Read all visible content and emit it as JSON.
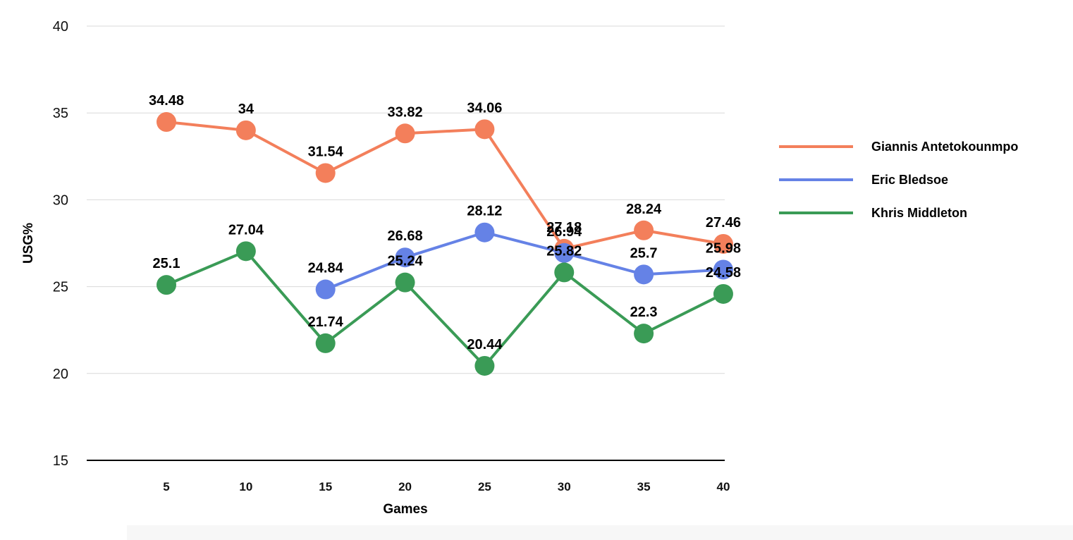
{
  "chart_data": {
    "type": "line",
    "title": "",
    "xlabel": "Games",
    "ylabel": "USG%",
    "x": [
      5,
      10,
      15,
      20,
      25,
      30,
      35,
      40
    ],
    "ylim": [
      15,
      40
    ],
    "yticks": [
      15,
      20,
      25,
      30,
      35,
      40
    ],
    "grid": true,
    "legend": "right",
    "series": [
      {
        "name": "Giannis Antetokounmpo",
        "color": "#f37f5b",
        "values": [
          34.48,
          34,
          31.54,
          33.82,
          34.06,
          27.18,
          28.24,
          27.46
        ]
      },
      {
        "name": "Eric Bledsoe",
        "color": "#6582e6",
        "values": [
          null,
          null,
          24.84,
          26.68,
          28.12,
          26.94,
          25.7,
          25.98
        ]
      },
      {
        "name": "Khris Middleton",
        "color": "#3a9b56",
        "values": [
          25.1,
          27.04,
          21.74,
          25.24,
          20.44,
          25.82,
          22.3,
          24.58
        ]
      }
    ]
  }
}
